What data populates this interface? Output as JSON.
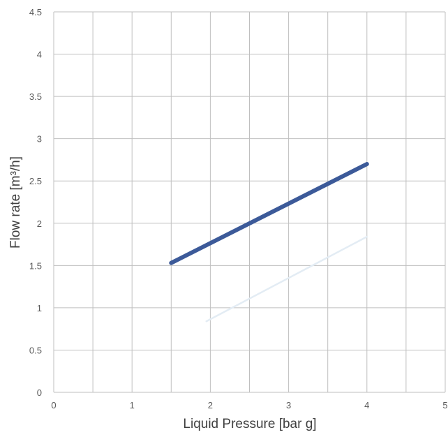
{
  "chart_data": {
    "type": "line",
    "title": "",
    "xlabel": "Liquid Pressure [bar g]",
    "ylabel": "Flow rate [m³/h]",
    "xlim": [
      0,
      5
    ],
    "ylim": [
      0,
      4.5
    ],
    "x_ticks": [
      "0",
      "1",
      "2",
      "3",
      "4",
      "5"
    ],
    "y_ticks": [
      "0",
      "0.5",
      "1",
      "1.5",
      "2",
      "2.5",
      "3",
      "3.5",
      "4",
      "4.5"
    ],
    "grid": true,
    "grid_step_x": 0.5,
    "grid_step_y": 0.5,
    "legend": "none",
    "series": [
      {
        "x": [
          1.5,
          4.0
        ],
        "y": [
          1.53,
          2.7
        ],
        "color": "#3c5a99"
      },
      {
        "x": [
          1.95,
          4.0
        ],
        "y": [
          0.84,
          1.84
        ],
        "color": "#e3ecf4"
      }
    ]
  }
}
